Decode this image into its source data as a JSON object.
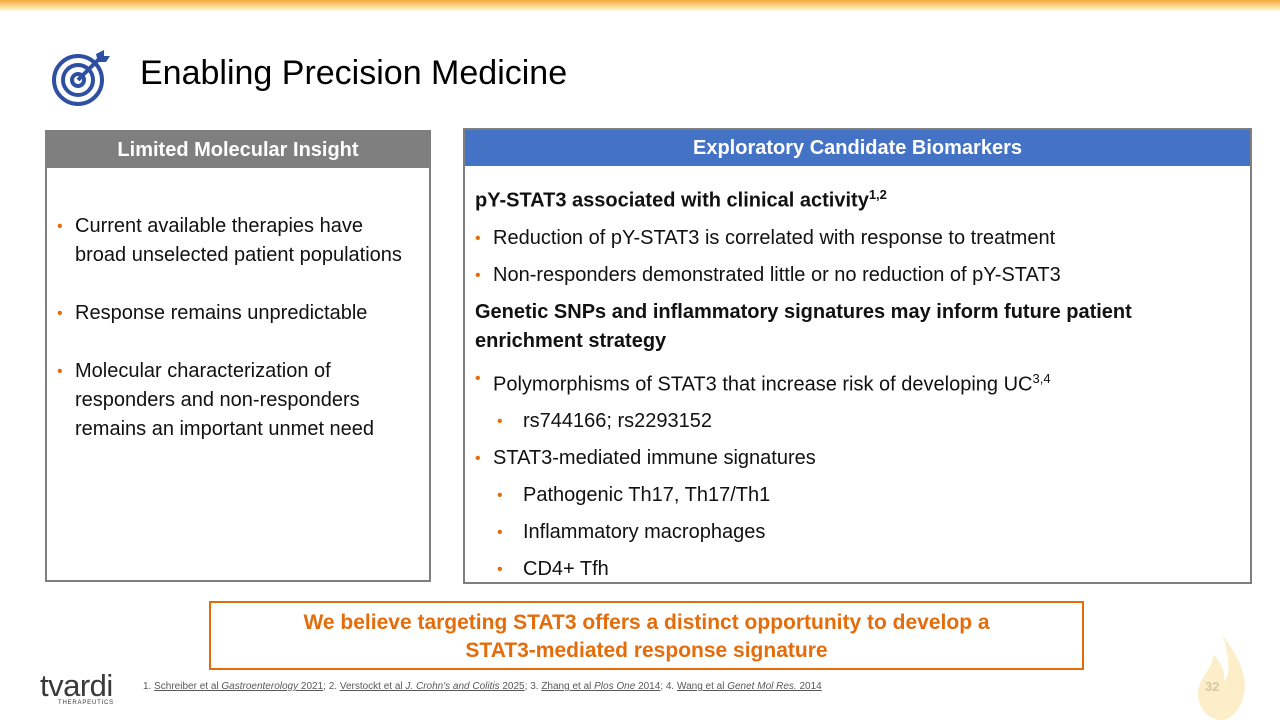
{
  "header": {
    "title": "Enabling Precision Medicine"
  },
  "left_panel": {
    "heading": "Limited Molecular Insight",
    "bullets": [
      "Current available therapies have broad unselected patient populations",
      "Response remains unpredictable",
      "Molecular characterization of responders and non-responders remains an important unmet need"
    ]
  },
  "right_panel": {
    "heading": "Exploratory Candidate Biomarkers",
    "items": [
      {
        "kind": "heading",
        "text": "pY-STAT3 associated with clinical activity",
        "sup": "1,2"
      },
      {
        "kind": "bullet",
        "text": "Reduction of pY-STAT3 is correlated with response to treatment"
      },
      {
        "kind": "bullet",
        "text": "Non-responders demonstrated little or no reduction of pY-STAT3"
      },
      {
        "kind": "heading",
        "text": "Genetic SNPs and inflammatory signatures may inform future patient enrichment strategy"
      },
      {
        "kind": "bullet",
        "text": "Polymorphisms of STAT3 that increase risk of developing UC",
        "sup": "3,4"
      },
      {
        "kind": "sub",
        "text": "rs744166; rs2293152"
      },
      {
        "kind": "bullet",
        "text": "STAT3-mediated immune signatures"
      },
      {
        "kind": "sub",
        "text": "Pathogenic Th17, Th17/Th1"
      },
      {
        "kind": "sub",
        "text": "Inflammatory macrophages"
      },
      {
        "kind": "sub",
        "text": "CD4+ Tfh"
      }
    ]
  },
  "callout": {
    "lines": [
      "We believe targeting STAT3 offers a distinct opportunity to develop a",
      "STAT3-mediated response signature"
    ]
  },
  "footer": {
    "logo": {
      "name": "tvardi",
      "tagline": "THERAPEUTICS"
    },
    "references": [
      {
        "num": "1.",
        "authors": "Schreiber et al",
        "journal": "Gastroenterology",
        "year": "2021",
        "sep": ";"
      },
      {
        "num": "2.",
        "authors": "Verstockt et al",
        "journal": "J. Crohn's and Colitis",
        "year": "2025",
        "sep": ";"
      },
      {
        "num": "3.",
        "authors": "Zhang et al",
        "journal": "Plos One",
        "year": "2014",
        "sep": ";"
      },
      {
        "num": "4.",
        "authors": "Wang et al",
        "journal": "Genet Mol Res.",
        "year": "2014"
      }
    ],
    "page_number": "32"
  }
}
